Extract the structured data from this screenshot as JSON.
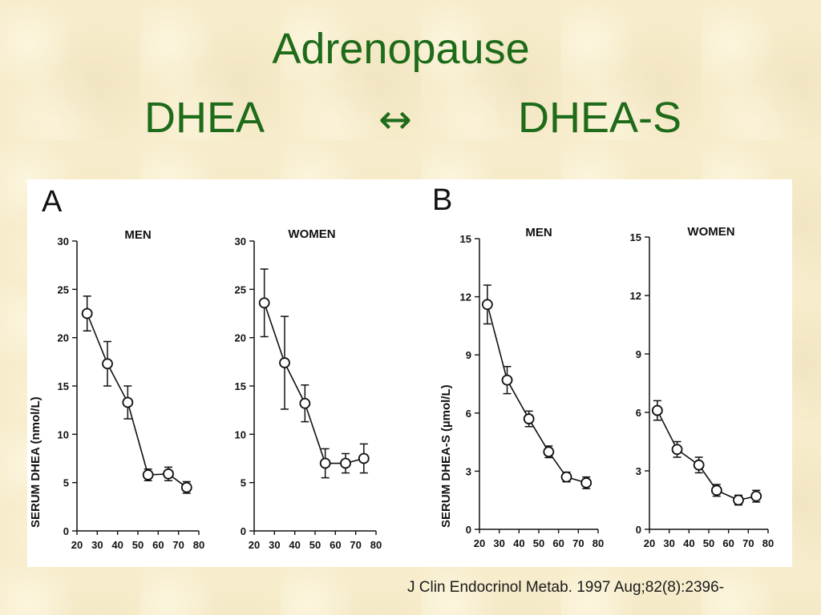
{
  "title": {
    "line1": "Adrenopause",
    "left": "DHEA",
    "arrow": "↔",
    "right": "DHEA-S",
    "color": "#1e6b1a"
  },
  "citation": "J Clin Endocrinol Metab. 1997 Aug;82(8):2396-",
  "panels": [
    {
      "letter": "A",
      "ylabel": "SERUM DHEA (nmol/L)"
    },
    {
      "letter": "B",
      "ylabel": "SERUM DHEA-S (µmol/L)"
    }
  ],
  "chart_data": [
    {
      "type": "line",
      "panel": "A",
      "title": "MEN",
      "ylabel": "SERUM DHEA (nmol/L)",
      "xlim": [
        20,
        80
      ],
      "xticks": [
        20,
        30,
        40,
        50,
        60,
        70,
        80
      ],
      "ylim": [
        0,
        30
      ],
      "yticks": [
        0,
        5,
        10,
        15,
        20,
        25,
        30
      ],
      "x": [
        25,
        35,
        45,
        55,
        65,
        74
      ],
      "y": [
        22.5,
        17.3,
        13.3,
        5.8,
        5.9,
        4.5
      ],
      "err": [
        1.8,
        2.3,
        1.7,
        0.6,
        0.7,
        0.6
      ]
    },
    {
      "type": "line",
      "panel": "A",
      "title": "WOMEN",
      "ylabel": "",
      "xlim": [
        20,
        80
      ],
      "xticks": [
        20,
        30,
        40,
        50,
        60,
        70,
        80
      ],
      "ylim": [
        0,
        30
      ],
      "yticks": [
        0,
        5,
        10,
        15,
        20,
        25,
        30
      ],
      "x": [
        25,
        35,
        45,
        55,
        65,
        74
      ],
      "y": [
        23.6,
        17.4,
        13.2,
        7.0,
        7.0,
        7.5
      ],
      "err": [
        3.5,
        4.8,
        1.9,
        1.5,
        1.0,
        1.5
      ]
    },
    {
      "type": "line",
      "panel": "B",
      "title": "MEN",
      "ylabel": "SERUM DHEA-S (µmol/L)",
      "xlim": [
        20,
        80
      ],
      "xticks": [
        20,
        30,
        40,
        50,
        60,
        70,
        80
      ],
      "ylim": [
        0,
        15
      ],
      "yticks": [
        0,
        3,
        6,
        9,
        12,
        15
      ],
      "x": [
        24,
        34,
        45,
        55,
        64,
        74
      ],
      "y": [
        11.6,
        7.7,
        5.7,
        4.0,
        2.7,
        2.4
      ],
      "err": [
        1.0,
        0.7,
        0.4,
        0.3,
        0.25,
        0.3
      ]
    },
    {
      "type": "line",
      "panel": "B",
      "title": "WOMEN",
      "ylabel": "",
      "xlim": [
        20,
        80
      ],
      "xticks": [
        20,
        30,
        40,
        50,
        60,
        70,
        80
      ],
      "ylim": [
        0,
        15
      ],
      "yticks": [
        0,
        3,
        6,
        9,
        12,
        15
      ],
      "x": [
        24,
        34,
        45,
        54,
        65,
        74
      ],
      "y": [
        6.1,
        4.1,
        3.3,
        2.0,
        1.5,
        1.7
      ],
      "err": [
        0.5,
        0.4,
        0.4,
        0.3,
        0.25,
        0.3
      ]
    }
  ]
}
